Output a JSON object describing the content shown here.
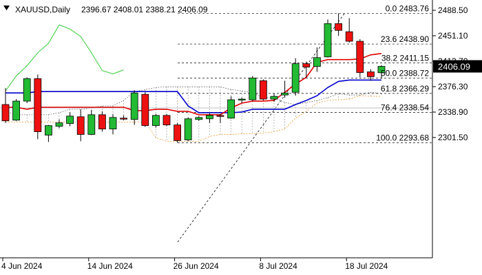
{
  "header": {
    "title": "XAUUSD,Daily",
    "ohlc": "2396.67 2408.01 2388.21 2406.09"
  },
  "chart_data": {
    "type": "candlestick",
    "symbol": "XAUUSD",
    "timeframe": "Daily",
    "ylim": [
      2285,
      2495
    ],
    "price_ticks": [
      "2488.50",
      "2451.10",
      "2413.70",
      "2376.30",
      "2338.90",
      "2301.50"
    ],
    "price_tick_values": [
      2488.5,
      2451.1,
      2413.7,
      2376.3,
      2338.9,
      2301.5
    ],
    "last_price": "2406.09",
    "last_price_value": 2406.09,
    "x_labels": [
      "4 Jun 2024",
      "14 Jun 2024",
      "26 Jun 2024",
      "8 Jul 2024",
      "18 Jul 2024"
    ],
    "x_label_index": [
      0,
      8,
      16,
      24,
      32
    ],
    "fib_levels": [
      {
        "label": "0.0 2483.76",
        "value": 2483.76
      },
      {
        "label": "23.6 2438.90",
        "value": 2438.9
      },
      {
        "label": "38.2 2411.15",
        "value": 2411.15
      },
      {
        "label": "50.0 2388.72",
        "value": 2388.72
      },
      {
        "label": "61.8 2366.29",
        "value": 2366.29
      },
      {
        "label": "76.4 2338.54",
        "value": 2338.54
      },
      {
        "label": "100.0 2293.68",
        "value": 2293.68
      }
    ],
    "candles": [
      {
        "o": 2350,
        "h": 2374,
        "l": 2323,
        "c": 2326
      },
      {
        "o": 2327,
        "h": 2358,
        "l": 2326,
        "c": 2355
      },
      {
        "o": 2355,
        "h": 2390,
        "l": 2352,
        "c": 2388
      },
      {
        "o": 2388,
        "h": 2394,
        "l": 2299,
        "c": 2310
      },
      {
        "o": 2305,
        "h": 2320,
        "l": 2295,
        "c": 2319
      },
      {
        "o": 2318,
        "h": 2328,
        "l": 2315,
        "c": 2323
      },
      {
        "o": 2322,
        "h": 2339,
        "l": 2318,
        "c": 2333
      },
      {
        "o": 2332,
        "h": 2343,
        "l": 2296,
        "c": 2306
      },
      {
        "o": 2306,
        "h": 2342,
        "l": 2305,
        "c": 2335
      },
      {
        "o": 2335,
        "h": 2340,
        "l": 2310,
        "c": 2314
      },
      {
        "o": 2314,
        "h": 2336,
        "l": 2306,
        "c": 2331
      },
      {
        "o": 2330,
        "h": 2334,
        "l": 2327,
        "c": 2329
      },
      {
        "o": 2328,
        "h": 2371,
        "l": 2320,
        "c": 2367
      },
      {
        "o": 2365,
        "h": 2368,
        "l": 2317,
        "c": 2319
      },
      {
        "o": 2319,
        "h": 2336,
        "l": 2316,
        "c": 2334
      },
      {
        "o": 2334,
        "h": 2336,
        "l": 2318,
        "c": 2320
      },
      {
        "o": 2320,
        "h": 2323,
        "l": 2294,
        "c": 2297
      },
      {
        "o": 2298,
        "h": 2331,
        "l": 2296,
        "c": 2329
      },
      {
        "o": 2328,
        "h": 2333,
        "l": 2326,
        "c": 2331
      },
      {
        "o": 2329,
        "h": 2337,
        "l": 2323,
        "c": 2334
      },
      {
        "o": 2334,
        "h": 2336,
        "l": 2323,
        "c": 2333
      },
      {
        "o": 2330,
        "h": 2362,
        "l": 2329,
        "c": 2357
      },
      {
        "o": 2357,
        "h": 2360,
        "l": 2352,
        "c": 2358
      },
      {
        "o": 2357,
        "h": 2392,
        "l": 2355,
        "c": 2389
      },
      {
        "o": 2385,
        "h": 2387,
        "l": 2356,
        "c": 2358
      },
      {
        "o": 2358,
        "h": 2366,
        "l": 2354,
        "c": 2362
      },
      {
        "o": 2364,
        "h": 2385,
        "l": 2360,
        "c": 2367
      },
      {
        "o": 2368,
        "h": 2418,
        "l": 2363,
        "c": 2410
      },
      {
        "o": 2410,
        "h": 2413,
        "l": 2390,
        "c": 2405
      },
      {
        "o": 2406,
        "h": 2434,
        "l": 2398,
        "c": 2419
      },
      {
        "o": 2420,
        "h": 2475,
        "l": 2419,
        "c": 2469
      },
      {
        "o": 2469,
        "h": 2484,
        "l": 2451,
        "c": 2459
      },
      {
        "o": 2457,
        "h": 2477,
        "l": 2441,
        "c": 2443
      },
      {
        "o": 2443,
        "h": 2446,
        "l": 2390,
        "c": 2397
      },
      {
        "o": 2398,
        "h": 2402,
        "l": 2385,
        "c": 2391
      },
      {
        "o": 2396.67,
        "h": 2408.01,
        "l": 2388.21,
        "c": 2406.09
      }
    ],
    "overlays": {
      "red_line": [
        2346,
        2346,
        2343,
        2346,
        2346,
        2346,
        2346,
        2346,
        2346,
        2346,
        2346,
        2346,
        2341,
        2341,
        2343,
        2343,
        2340,
        2340,
        2335,
        2335,
        2335,
        2345,
        2352,
        2355,
        2355,
        2356,
        2368,
        2380,
        2390,
        2412,
        2416,
        2416,
        2416,
        2417,
        2423,
        2425
      ],
      "blue_line": [
        2367,
        2367,
        2367,
        2369,
        2369,
        2369,
        2369,
        2369,
        2369,
        2369,
        2369,
        2369,
        2369,
        2369,
        2369,
        2369,
        2369,
        2348,
        2338,
        2338,
        2338,
        2338,
        2339,
        2343,
        2343,
        2343,
        2343,
        2350,
        2356,
        2363,
        2375,
        2384,
        2386,
        2386,
        2386,
        2386
      ],
      "green_line": [
        2370,
        2392,
        2407,
        2426,
        2440,
        2467,
        2461,
        2450,
        2426,
        2400,
        2395,
        2401
      ],
      "cloud_top": [
        2340,
        2335,
        2335,
        2335,
        2335,
        2338,
        2343,
        2343,
        2345,
        2348,
        2348,
        2356,
        2369,
        2372,
        2375,
        2376,
        2376,
        2376,
        2376,
        2376,
        2376,
        2372,
        2370,
        2367,
        2360,
        2360,
        2353,
        2350,
        2353,
        2356,
        2360,
        2366,
        2364,
        2364,
        2368,
        2366
      ],
      "cloud_bottom": [
        2324,
        2324,
        2324,
        2324,
        2324,
        2324,
        2324,
        2324,
        2324,
        2324,
        2324,
        2324,
        2324,
        2324,
        2301,
        2296,
        2296,
        2296,
        2296,
        2303,
        2306,
        2306,
        2307,
        2307,
        2308,
        2310,
        2314,
        2330,
        2340,
        2352,
        2356,
        2357,
        2358,
        2363,
        2362,
        2362
      ]
    }
  }
}
